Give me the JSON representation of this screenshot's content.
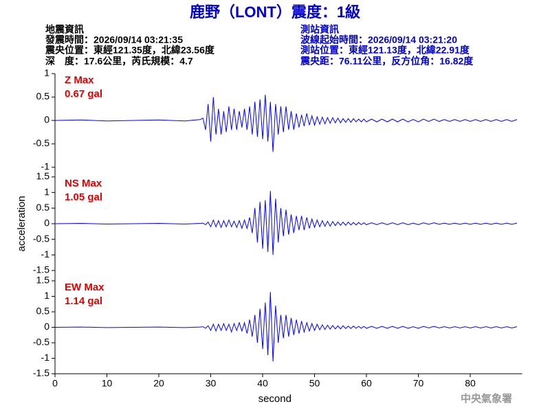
{
  "header": {
    "title": "鹿野（LONT）震度：1級",
    "left": [
      "地震資訊",
      "發震時間：2026/09/14 03:21:35",
      "震央位置：東經121.35度，北緯23.56度",
      "深　度：17.6公里，芮氏規模：4.7"
    ],
    "right": [
      "測站資訊",
      "波線起始時間：2026/09/14 03:21:20",
      "測站位置：東經121.13度，北緯22.91度",
      "震央距：76.11公里，反方位角：16.82度"
    ],
    "footer": "中央氣象署"
  },
  "chart_data": [
    {
      "type": "line",
      "label": "Z Max",
      "max_label": "0.67 gal",
      "color": "#0000ff",
      "xlim": [
        0,
        90
      ],
      "ylim": [
        -1,
        1
      ],
      "yticks": [
        -1,
        -0.5,
        0,
        0.5,
        1
      ],
      "x": [
        0,
        5,
        10,
        15,
        20,
        25,
        28,
        28.5,
        29,
        29.5,
        30,
        30.5,
        31,
        31.5,
        32,
        32.5,
        33,
        33.5,
        34,
        34.5,
        35,
        35.5,
        36,
        36.5,
        37,
        37.5,
        38,
        38.5,
        39,
        39.5,
        40,
        40.5,
        41,
        41.5,
        42,
        42.5,
        43,
        43.5,
        44,
        44.5,
        45,
        45.5,
        46,
        46.5,
        47,
        47.5,
        48,
        48.5,
        49,
        49.5,
        50,
        50.5,
        51,
        51.5,
        52,
        52.5,
        53,
        53.5,
        54,
        54.5,
        55,
        55.5,
        56,
        56.5,
        57,
        57.5,
        58,
        58.5,
        59,
        59.5,
        60,
        61,
        62,
        63,
        64,
        65,
        66,
        67,
        68,
        69,
        70,
        71,
        72,
        73,
        74,
        75,
        76,
        77,
        78,
        79,
        80,
        81,
        82,
        83,
        84,
        85,
        86,
        87,
        88,
        89
      ],
      "values": [
        0,
        0.01,
        -0.01,
        0,
        0.01,
        -0.01,
        0.02,
        0.05,
        -0.2,
        0.35,
        -0.45,
        0.5,
        -0.3,
        0.25,
        -0.3,
        0.2,
        -0.25,
        0.3,
        -0.2,
        0.25,
        -0.2,
        0.2,
        -0.15,
        0.25,
        -0.2,
        0.3,
        -0.3,
        0.4,
        -0.35,
        0.45,
        -0.4,
        0.55,
        -0.45,
        0.4,
        -0.67,
        0.35,
        -0.3,
        0.3,
        -0.25,
        0.3,
        -0.2,
        0.2,
        -0.2,
        0.15,
        -0.15,
        0.12,
        -0.12,
        0.15,
        -0.1,
        0.1,
        -0.1,
        0.08,
        -0.08,
        0.07,
        -0.07,
        0.06,
        -0.06,
        0.06,
        -0.05,
        0.05,
        -0.05,
        0.04,
        -0.04,
        0.04,
        -0.04,
        0.04,
        -0.03,
        0.03,
        -0.03,
        0.03,
        -0.03,
        0.03,
        -0.03,
        0.03,
        -0.03,
        0.03,
        -0.03,
        0.03,
        -0.03,
        0.02,
        -0.03,
        0.03,
        -0.02,
        0.03,
        -0.02,
        0.02,
        -0.02,
        0.02,
        -0.02,
        0.02,
        -0.02,
        0.02,
        -0.02,
        0.02,
        -0.02,
        0.02,
        -0.02,
        0.02,
        -0.02,
        0.02
      ]
    },
    {
      "type": "line",
      "label": "NS Max",
      "max_label": "1.05 gal",
      "ylabel": "acceleration",
      "color": "#0000ff",
      "xlim": [
        0,
        90
      ],
      "ylim": [
        -1.5,
        1.5
      ],
      "yticks": [
        -1.5,
        -1,
        -0.5,
        0,
        0.5,
        1,
        1.5
      ],
      "x": [
        0,
        5,
        10,
        15,
        20,
        25,
        28,
        28.5,
        29,
        29.5,
        30,
        30.5,
        31,
        31.5,
        32,
        32.5,
        33,
        33.5,
        34,
        34.5,
        35,
        35.5,
        36,
        36.5,
        37,
        37.5,
        38,
        38.5,
        39,
        39.5,
        40,
        40.5,
        41,
        41.5,
        42,
        42.5,
        43,
        43.5,
        44,
        44.5,
        45,
        45.5,
        46,
        46.5,
        47,
        47.5,
        48,
        48.5,
        49,
        49.5,
        50,
        50.5,
        51,
        51.5,
        52,
        52.5,
        53,
        53.5,
        54,
        54.5,
        55,
        55.5,
        56,
        56.5,
        57,
        57.5,
        58,
        58.5,
        59,
        59.5,
        60,
        61,
        62,
        63,
        64,
        65,
        66,
        67,
        68,
        69,
        70,
        71,
        72,
        73,
        74,
        75,
        76,
        77,
        78,
        79,
        80,
        81,
        82,
        83,
        84,
        85,
        86,
        87,
        88,
        89
      ],
      "values": [
        0,
        0.01,
        -0.01,
        0,
        0.01,
        -0.01,
        0.01,
        0.02,
        -0.03,
        0.05,
        -0.1,
        0.12,
        -0.1,
        0.1,
        -0.12,
        0.1,
        -0.1,
        0.12,
        -0.1,
        0.08,
        -0.12,
        0.1,
        -0.15,
        0.12,
        -0.15,
        0.2,
        -0.3,
        0.5,
        -0.6,
        0.7,
        -0.8,
        0.75,
        -0.9,
        1.05,
        -1.0,
        0.8,
        -0.6,
        0.5,
        -0.4,
        0.45,
        -0.35,
        0.3,
        -0.3,
        0.25,
        -0.2,
        0.25,
        -0.2,
        0.2,
        -0.15,
        0.15,
        -0.12,
        0.12,
        -0.1,
        0.1,
        -0.08,
        0.08,
        -0.08,
        0.07,
        -0.06,
        0.06,
        -0.05,
        0.05,
        -0.05,
        0.05,
        -0.04,
        0.04,
        -0.04,
        0.04,
        -0.03,
        0.03,
        -0.03,
        0.03,
        -0.03,
        0.03,
        -0.03,
        0.03,
        -0.03,
        0.03,
        -0.03,
        0.02,
        -0.03,
        0.03,
        -0.02,
        0.03,
        -0.02,
        0.02,
        -0.02,
        0.02,
        -0.02,
        0.02,
        -0.02,
        0.02,
        -0.02,
        0.02,
        -0.02,
        0.02,
        -0.02,
        0.02,
        -0.02,
        0.02
      ]
    },
    {
      "type": "line",
      "label": "EW Max",
      "max_label": "1.14 gal",
      "xlabel": "second",
      "color": "#0000ff",
      "xlim": [
        0,
        90
      ],
      "ylim": [
        -1.5,
        1.5
      ],
      "yticks": [
        -1.5,
        -1,
        -0.5,
        0,
        0.5,
        1,
        1.5
      ],
      "xticks": [
        0,
        10,
        20,
        30,
        40,
        50,
        60,
        70,
        80
      ],
      "x": [
        0,
        5,
        10,
        15,
        20,
        25,
        28,
        28.5,
        29,
        29.5,
        30,
        30.5,
        31,
        31.5,
        32,
        32.5,
        33,
        33.5,
        34,
        34.5,
        35,
        35.5,
        36,
        36.5,
        37,
        37.5,
        38,
        38.5,
        39,
        39.5,
        40,
        40.5,
        41,
        41.5,
        42,
        42.5,
        43,
        43.5,
        44,
        44.5,
        45,
        45.5,
        46,
        46.5,
        47,
        47.5,
        48,
        48.5,
        49,
        49.5,
        50,
        50.5,
        51,
        51.5,
        52,
        52.5,
        53,
        53.5,
        54,
        54.5,
        55,
        55.5,
        56,
        56.5,
        57,
        57.5,
        58,
        58.5,
        59,
        59.5,
        60,
        61,
        62,
        63,
        64,
        65,
        66,
        67,
        68,
        69,
        70,
        71,
        72,
        73,
        74,
        75,
        76,
        77,
        78,
        79,
        80,
        81,
        82,
        83,
        84,
        85,
        86,
        87,
        88,
        89
      ],
      "values": [
        0,
        0.01,
        -0.01,
        0,
        0.01,
        -0.01,
        0.01,
        0.02,
        -0.03,
        0.05,
        -0.1,
        0.1,
        -0.12,
        0.1,
        -0.1,
        0.12,
        -0.1,
        0.1,
        -0.15,
        0.12,
        -0.1,
        0.15,
        -0.12,
        0.15,
        -0.2,
        0.25,
        -0.3,
        0.4,
        -0.5,
        0.6,
        -0.7,
        0.8,
        -0.9,
        1.14,
        -1.1,
        0.7,
        -0.5,
        0.4,
        -0.35,
        0.4,
        -0.3,
        0.3,
        -0.25,
        0.25,
        -0.2,
        0.2,
        -0.15,
        0.15,
        -0.12,
        0.12,
        -0.1,
        0.1,
        -0.08,
        0.08,
        -0.07,
        0.07,
        -0.06,
        0.06,
        -0.05,
        0.05,
        -0.05,
        0.05,
        -0.04,
        0.04,
        -0.04,
        0.04,
        -0.03,
        0.03,
        -0.03,
        0.03,
        -0.03,
        0.03,
        -0.03,
        0.03,
        -0.03,
        0.03,
        -0.03,
        0.03,
        -0.03,
        0.02,
        -0.03,
        0.03,
        -0.02,
        0.03,
        -0.02,
        0.02,
        -0.02,
        0.02,
        -0.02,
        0.02,
        -0.02,
        0.02,
        -0.02,
        0.02,
        -0.02,
        0.02,
        -0.02,
        0.02,
        -0.02,
        0.02
      ]
    }
  ]
}
